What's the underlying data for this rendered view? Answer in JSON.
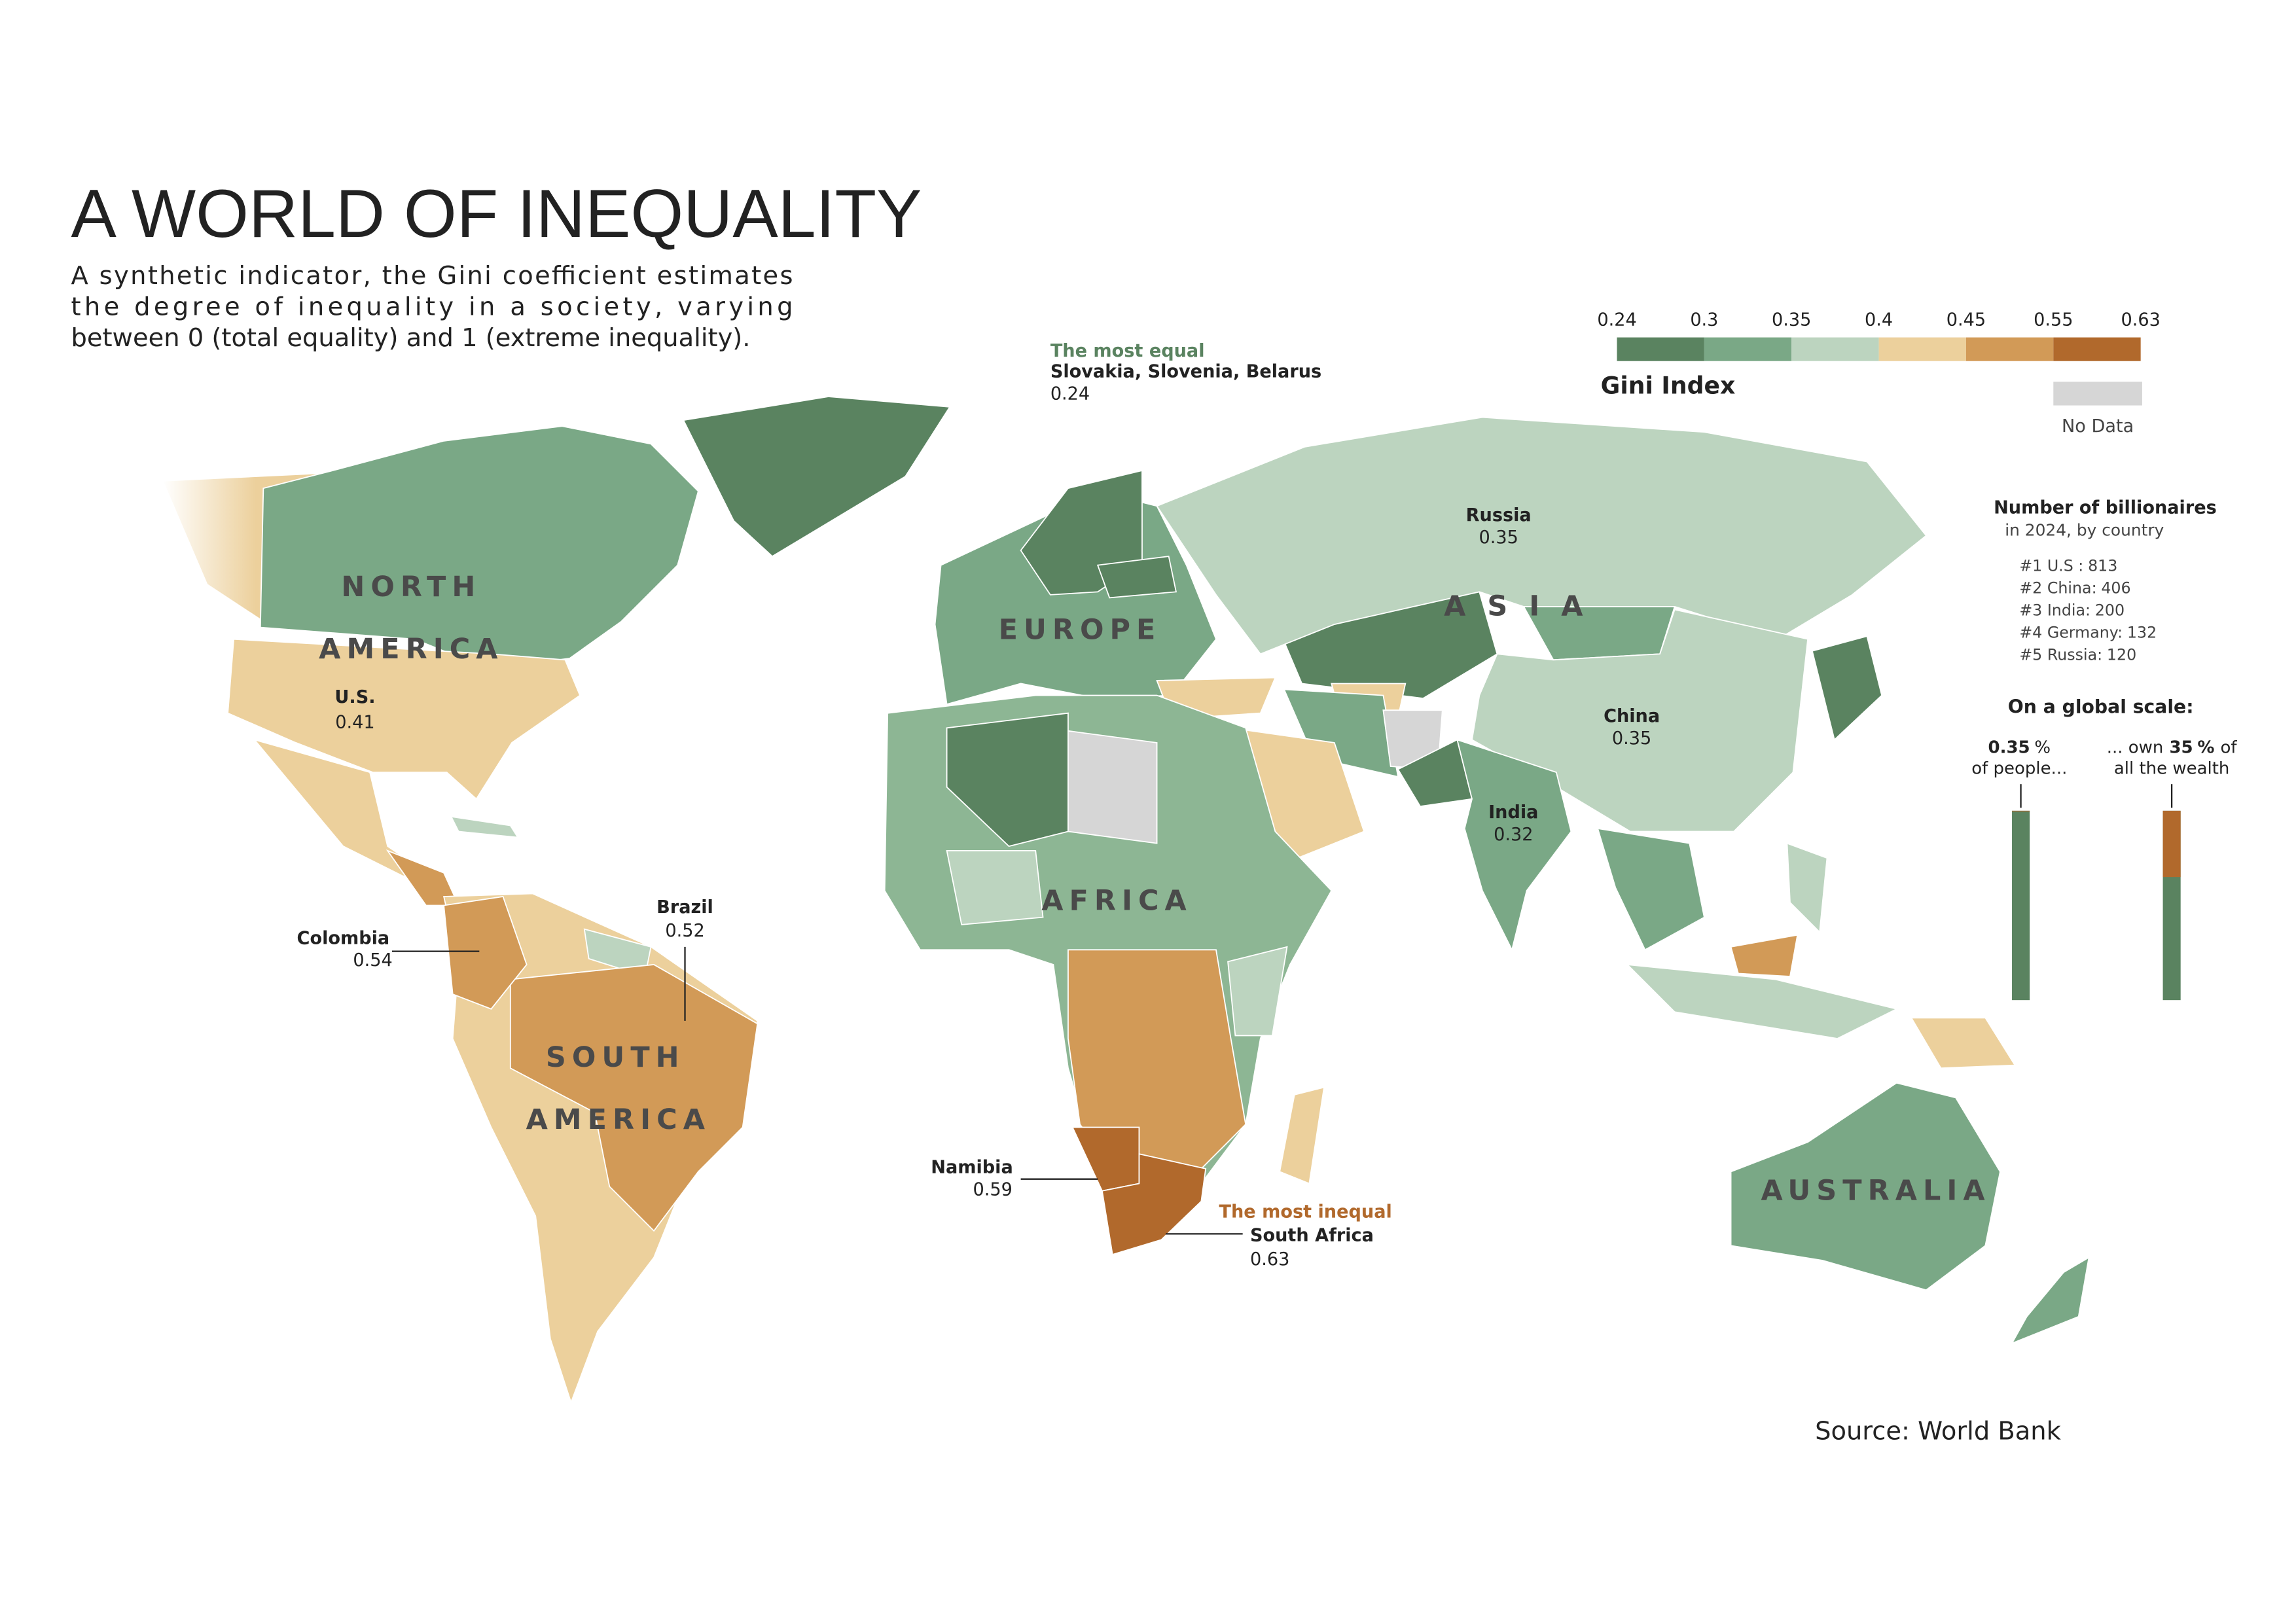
{
  "title": "A WORLD OF INEQUALITY",
  "subtitle_lines": [
    "A synthetic indicator, the Gini coefficient estimates",
    "the degree of inequality in a society, varying",
    "between 0 (total equality) and 1 (extreme inequality)."
  ],
  "legend": {
    "title": "Gini Index",
    "breaks": [
      0.24,
      0.3,
      0.35,
      0.4,
      0.45,
      0.55,
      0.63
    ],
    "colors": [
      "#5a8360",
      "#7aa886",
      "#bcd4bf",
      "#ecd09c",
      "#d29a57",
      "#b1692c"
    ],
    "no_data_label": "No Data",
    "no_data_color": "#d6d6d6"
  },
  "continents": [
    "NORTH",
    "AMERICA",
    "EUROPE",
    "A S I A",
    "AFRICA",
    "SOUTH",
    "AMERICA",
    "AUSTRALIA"
  ],
  "countries": [
    {
      "name": "U.S.",
      "gini": 0.41
    },
    {
      "name": "Russia",
      "gini": 0.35
    },
    {
      "name": "China",
      "gini": 0.35
    },
    {
      "name": "India",
      "gini": 0.32
    },
    {
      "name": "Brazil",
      "gini": 0.52
    },
    {
      "name": "Colombia",
      "gini": 0.54
    },
    {
      "name": "Namibia",
      "gini": 0.59
    }
  ],
  "most_equal": {
    "heading": "The most equal",
    "name": "Slovakia, Slovenia, Belarus",
    "gini": 0.24
  },
  "most_inequal": {
    "heading": "The most inequal",
    "name": "South Africa",
    "gini": 0.63
  },
  "billionaires": {
    "title": "Number of billionaires",
    "subtitle": "in 2024, by country",
    "items": [
      {
        "label": "#1 U.S :",
        "count": 813
      },
      {
        "label": "#2 China:",
        "count": 406
      },
      {
        "label": "#3 India:",
        "count": 200
      },
      {
        "label": "#4 Germany:",
        "count": 132
      },
      {
        "label": "#5 Russia:",
        "count": 120
      }
    ]
  },
  "global_scale": {
    "title": "On a global scale:",
    "people": {
      "value": 0.35,
      "unit": "%",
      "text": "of people..."
    },
    "wealth": {
      "prefix": "... own",
      "value": 35,
      "unit": "%",
      "suffix": "of",
      "text": "all the wealth"
    }
  },
  "source": "Source: World Bank"
}
